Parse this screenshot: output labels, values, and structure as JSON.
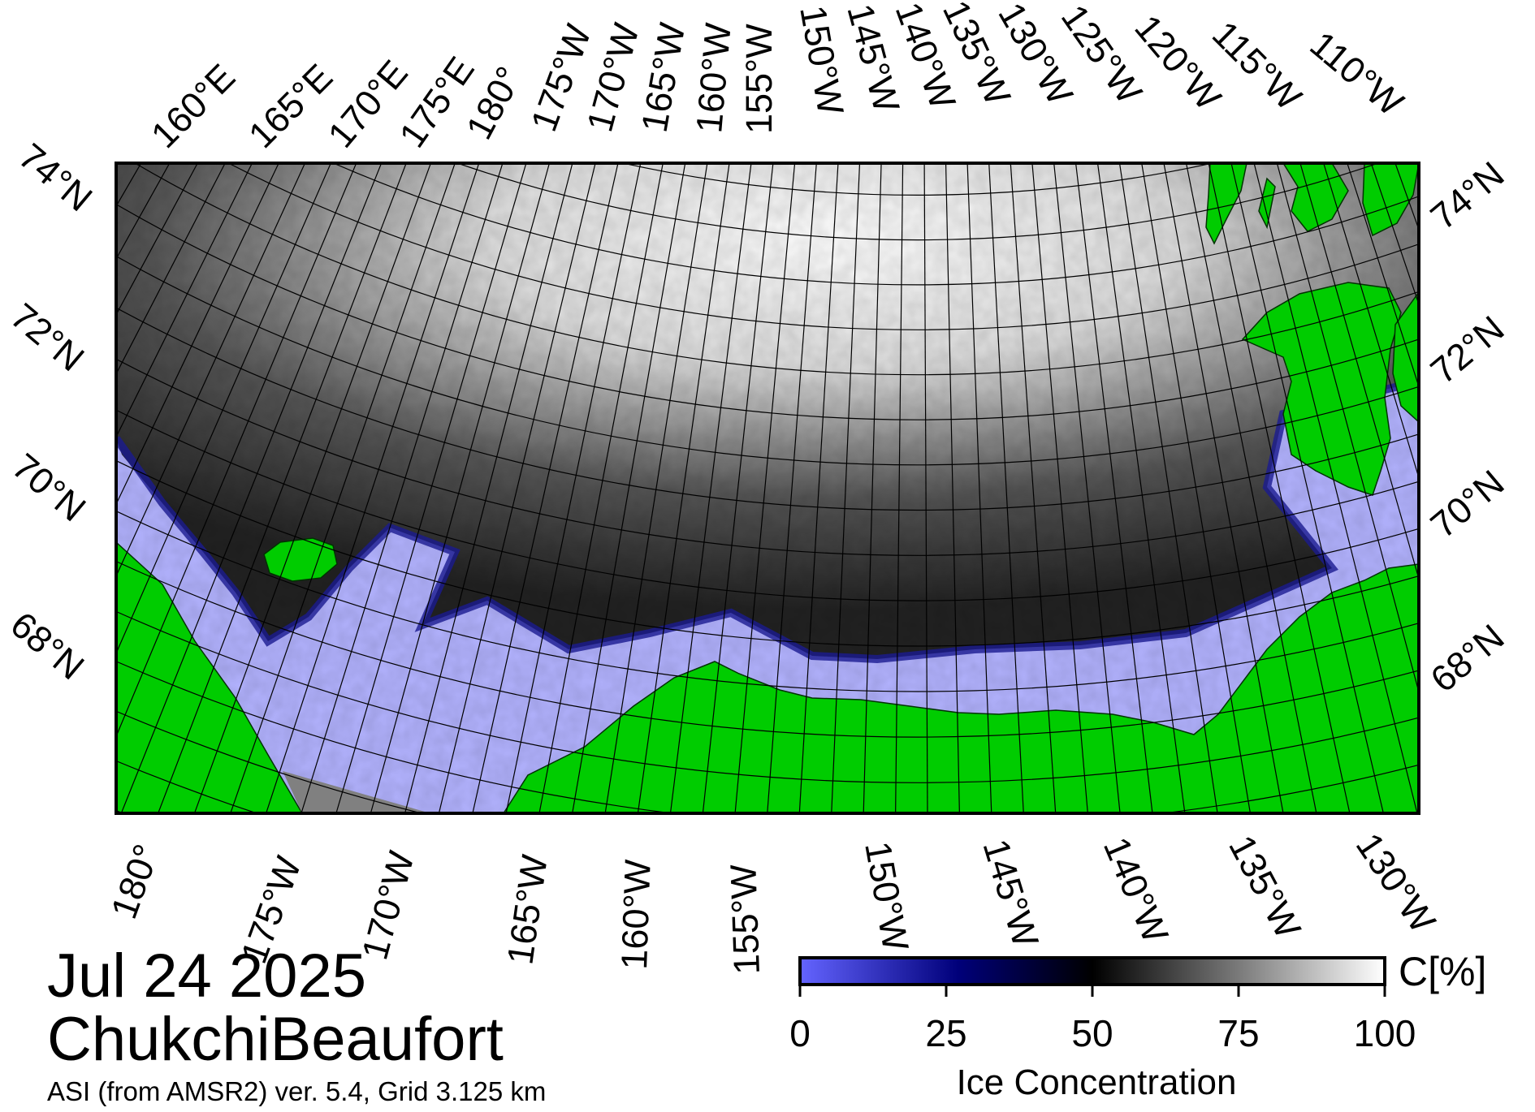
{
  "map": {
    "date": "Jul 24 2025",
    "region": "ChukchiBeaufort",
    "product": "ASI (from AMSR2) ver. 5.4,  Grid 3.125 km",
    "top_longitude_labels": [
      "160°E",
      "165°E",
      "170°E",
      "175°E",
      "180°",
      "175°W",
      "170°W",
      "165°W",
      "160°W",
      "155°W",
      "150°W",
      "145°W",
      "140°W",
      "135°W",
      "130°W",
      "125°W",
      "120°W",
      "115°W",
      "110°W"
    ],
    "bottom_longitude_labels": [
      "180°",
      "175°W",
      "170°W",
      "165°W",
      "160°W",
      "155°W",
      "150°W",
      "145°W",
      "140°W",
      "135°W",
      "130°W"
    ],
    "left_latitude_labels": [
      "74°N",
      "72°N",
      "70°N",
      "68°N"
    ],
    "right_latitude_labels": [
      "74°N",
      "72°N",
      "70°N",
      "68°N"
    ],
    "colors": {
      "land": "#00cc00",
      "open_water": "#b3b3ff",
      "ice_high": "#ffffff",
      "ice_mid": "#000000",
      "ice_low": "#000080",
      "no_data": "#808080"
    }
  },
  "colorbar": {
    "unit_label": "C[%]",
    "ticks": [
      "0",
      "25",
      "50",
      "75",
      "100"
    ],
    "title": "Ice Concentration",
    "range": [
      0,
      100
    ]
  }
}
